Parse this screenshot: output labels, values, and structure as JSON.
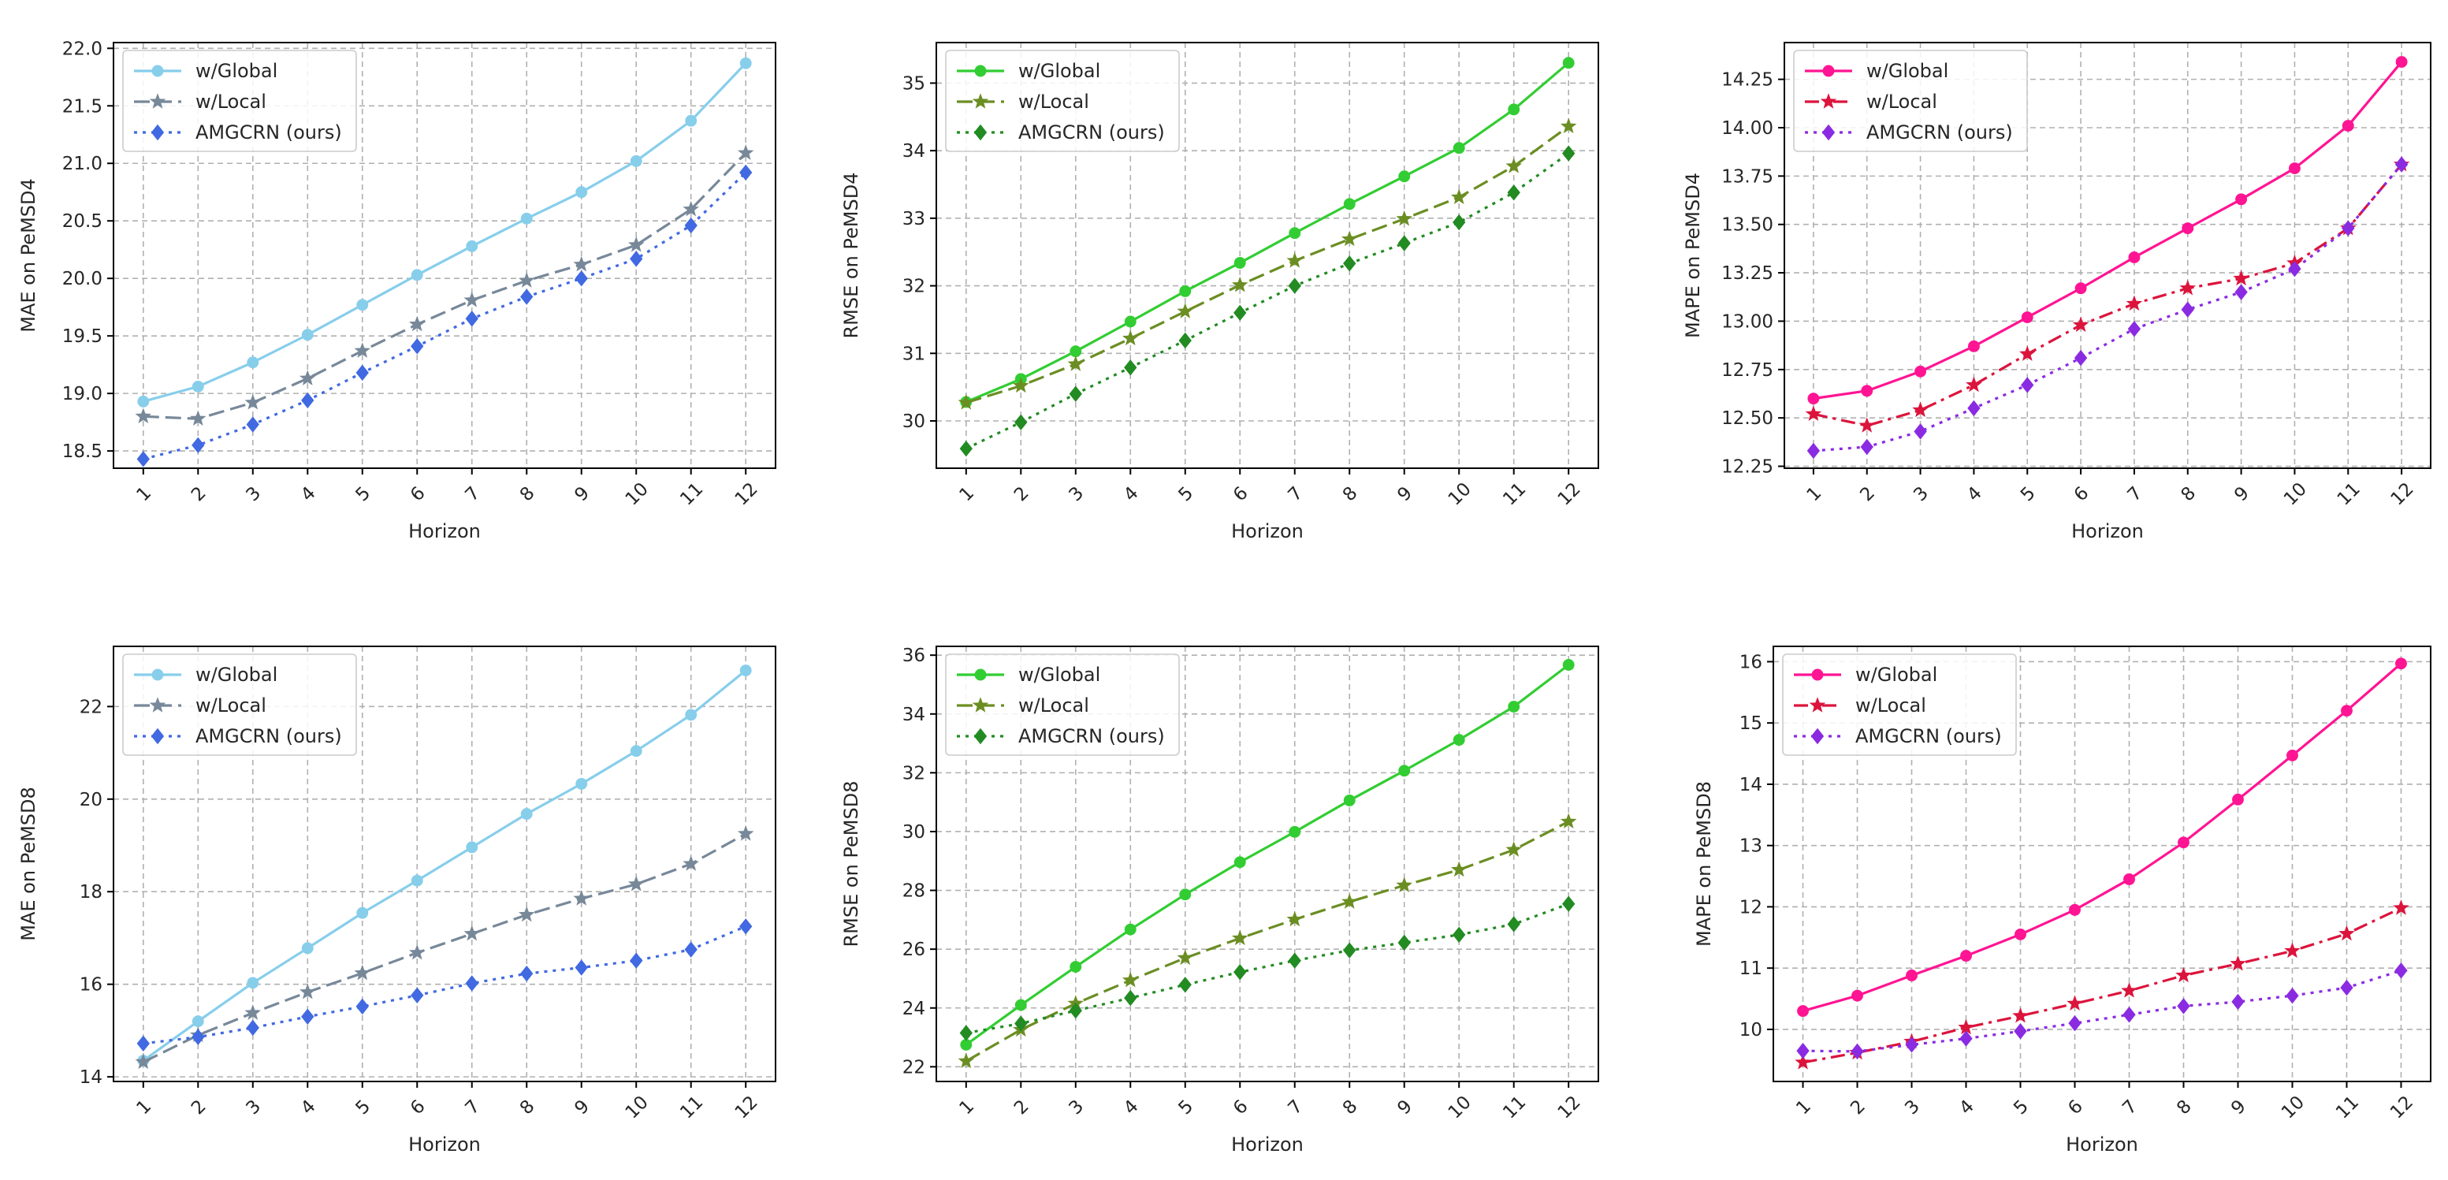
{
  "figure": {
    "subplots": 6
  },
  "chart_data": [
    {
      "type": "line",
      "xlabel": "Horizon",
      "ylabel": "MAE on PeMSD4",
      "x": [
        "1",
        "2",
        "3",
        "4",
        "5",
        "6",
        "7",
        "8",
        "9",
        "10",
        "11",
        "12"
      ],
      "ylim": [
        18.35,
        22.05
      ],
      "yticks": [
        18.5,
        19.0,
        19.5,
        20.0,
        20.5,
        21.0,
        21.5,
        22.0
      ],
      "ytick_labels": [
        "18.5",
        "19.0",
        "19.5",
        "20.0",
        "20.5",
        "21.0",
        "21.5",
        "22.0"
      ],
      "grid": true,
      "legend_position": "upper-left",
      "series": [
        {
          "name": "w/Global",
          "color": "#87ceeb",
          "marker": "circle",
          "linestyle": "solid",
          "values": [
            18.93,
            19.06,
            19.27,
            19.51,
            19.77,
            20.03,
            20.28,
            20.52,
            20.75,
            21.02,
            21.37,
            21.87
          ]
        },
        {
          "name": "w/Local",
          "color": "#778899",
          "marker": "star",
          "linestyle": "dashed",
          "values": [
            18.8,
            18.78,
            18.92,
            19.13,
            19.37,
            19.6,
            19.81,
            19.98,
            20.12,
            20.29,
            20.6,
            21.09
          ]
        },
        {
          "name": "AMGCRN (ours)",
          "color": "#4169e1",
          "marker": "diamond",
          "linestyle": "dotted",
          "values": [
            18.43,
            18.55,
            18.73,
            18.94,
            19.18,
            19.41,
            19.65,
            19.84,
            20.0,
            20.17,
            20.46,
            20.92
          ]
        }
      ]
    },
    {
      "type": "line",
      "xlabel": "Horizon",
      "ylabel": "RMSE on PeMSD4",
      "x": [
        "1",
        "2",
        "3",
        "4",
        "5",
        "6",
        "7",
        "8",
        "9",
        "10",
        "11",
        "12"
      ],
      "ylim": [
        29.3,
        35.6
      ],
      "yticks": [
        30,
        31,
        32,
        33,
        34,
        35
      ],
      "ytick_labels": [
        "30",
        "31",
        "32",
        "33",
        "34",
        "35"
      ],
      "grid": true,
      "legend_position": "upper-left",
      "series": [
        {
          "name": "w/Global",
          "color": "#32cd32",
          "marker": "circle",
          "linestyle": "solid",
          "values": [
            30.28,
            30.62,
            31.03,
            31.47,
            31.92,
            32.34,
            32.78,
            33.21,
            33.62,
            34.04,
            34.61,
            35.3
          ]
        },
        {
          "name": "w/Local",
          "color": "#6b8e23",
          "marker": "star",
          "linestyle": "dashed",
          "values": [
            30.27,
            30.52,
            30.84,
            31.22,
            31.62,
            32.01,
            32.37,
            32.69,
            32.99,
            33.31,
            33.77,
            34.36
          ]
        },
        {
          "name": "AMGCRN (ours)",
          "color": "#228b22",
          "marker": "diamond",
          "linestyle": "dotted",
          "values": [
            29.59,
            29.98,
            30.4,
            30.79,
            31.19,
            31.6,
            32.0,
            32.33,
            32.63,
            32.94,
            33.38,
            33.96
          ]
        }
      ]
    },
    {
      "type": "line",
      "xlabel": "Horizon",
      "ylabel": "MAPE on PeMSD4",
      "x": [
        "1",
        "2",
        "3",
        "4",
        "5",
        "6",
        "7",
        "8",
        "9",
        "10",
        "11",
        "12"
      ],
      "ylim": [
        12.24,
        14.44
      ],
      "yticks": [
        12.25,
        12.5,
        12.75,
        13.0,
        13.25,
        13.5,
        13.75,
        14.0,
        14.25
      ],
      "ytick_labels": [
        "12.25",
        "12.50",
        "12.75",
        "13.00",
        "13.25",
        "13.50",
        "13.75",
        "14.00",
        "14.25"
      ],
      "grid": true,
      "legend_position": "upper-left",
      "series": [
        {
          "name": "w/Global",
          "color": "#ff1493",
          "marker": "circle",
          "linestyle": "solid",
          "values": [
            12.6,
            12.64,
            12.74,
            12.87,
            13.02,
            13.17,
            13.33,
            13.48,
            13.63,
            13.79,
            14.01,
            14.34
          ]
        },
        {
          "name": "w/Local",
          "color": "#dc143c",
          "marker": "star",
          "linestyle": "dashdot",
          "values": [
            12.52,
            12.46,
            12.54,
            12.67,
            12.83,
            12.98,
            13.09,
            13.17,
            13.22,
            13.3,
            13.48,
            13.81
          ]
        },
        {
          "name": "AMGCRN (ours)",
          "color": "#8a2be2",
          "marker": "diamond",
          "linestyle": "dotted",
          "values": [
            12.33,
            12.35,
            12.43,
            12.55,
            12.67,
            12.81,
            12.96,
            13.06,
            13.15,
            13.27,
            13.48,
            13.81
          ]
        }
      ]
    },
    {
      "type": "line",
      "xlabel": "Horizon",
      "ylabel": "MAE on PeMSD8",
      "x": [
        "1",
        "2",
        "3",
        "4",
        "5",
        "6",
        "7",
        "8",
        "9",
        "10",
        "11",
        "12"
      ],
      "ylim": [
        13.9,
        23.3
      ],
      "yticks": [
        14,
        16,
        18,
        20,
        22
      ],
      "ytick_labels": [
        "14",
        "16",
        "18",
        "20",
        "22"
      ],
      "grid": true,
      "legend_position": "upper-left",
      "series": [
        {
          "name": "w/Global",
          "color": "#87ceeb",
          "marker": "circle",
          "linestyle": "solid",
          "values": [
            14.35,
            15.2,
            16.03,
            16.78,
            17.54,
            18.24,
            18.96,
            19.68,
            20.33,
            21.04,
            21.82,
            22.78
          ]
        },
        {
          "name": "w/Local",
          "color": "#778899",
          "marker": "star",
          "linestyle": "dashed",
          "values": [
            14.32,
            14.9,
            15.38,
            15.83,
            16.24,
            16.68,
            17.09,
            17.5,
            17.85,
            18.16,
            18.6,
            19.25
          ]
        },
        {
          "name": "AMGCRN (ours)",
          "color": "#4169e1",
          "marker": "diamond",
          "linestyle": "dotted",
          "values": [
            14.72,
            14.86,
            15.06,
            15.3,
            15.52,
            15.76,
            16.02,
            16.23,
            16.36,
            16.51,
            16.75,
            17.25
          ]
        }
      ]
    },
    {
      "type": "line",
      "xlabel": "Horizon",
      "ylabel": "RMSE on PeMSD8",
      "x": [
        "1",
        "2",
        "3",
        "4",
        "5",
        "6",
        "7",
        "8",
        "9",
        "10",
        "11",
        "12"
      ],
      "ylim": [
        21.5,
        36.3
      ],
      "yticks": [
        22,
        24,
        26,
        28,
        30,
        32,
        34,
        36
      ],
      "ytick_labels": [
        "22",
        "24",
        "26",
        "28",
        "30",
        "32",
        "34",
        "36"
      ],
      "grid": true,
      "legend_position": "upper-left",
      "series": [
        {
          "name": "w/Global",
          "color": "#32cd32",
          "marker": "circle",
          "linestyle": "solid",
          "values": [
            22.75,
            24.1,
            25.4,
            26.67,
            27.86,
            28.96,
            29.99,
            31.06,
            32.07,
            33.12,
            34.25,
            35.67
          ]
        },
        {
          "name": "w/Local",
          "color": "#6b8e23",
          "marker": "star",
          "linestyle": "dashed",
          "values": [
            22.19,
            23.26,
            24.15,
            24.94,
            25.7,
            26.37,
            27.01,
            27.61,
            28.17,
            28.7,
            29.38,
            30.34
          ]
        },
        {
          "name": "AMGCRN (ours)",
          "color": "#228b22",
          "marker": "diamond",
          "linestyle": "dotted",
          "values": [
            23.15,
            23.47,
            23.91,
            24.34,
            24.79,
            25.22,
            25.61,
            25.96,
            26.22,
            26.49,
            26.85,
            27.54
          ]
        }
      ]
    },
    {
      "type": "line",
      "xlabel": "Horizon",
      "ylabel": "MAPE on PeMSD8",
      "x": [
        "1",
        "2",
        "3",
        "4",
        "5",
        "6",
        "7",
        "8",
        "9",
        "10",
        "11",
        "12"
      ],
      "ylim": [
        9.15,
        16.25
      ],
      "yticks": [
        10,
        11,
        12,
        13,
        14,
        15,
        16
      ],
      "ytick_labels": [
        "10",
        "11",
        "12",
        "13",
        "14",
        "15",
        "16"
      ],
      "grid": true,
      "legend_position": "upper-left",
      "series": [
        {
          "name": "w/Global",
          "color": "#ff1493",
          "marker": "circle",
          "linestyle": "solid",
          "values": [
            10.3,
            10.55,
            10.88,
            11.2,
            11.55,
            11.95,
            12.45,
            13.05,
            13.75,
            14.47,
            15.2,
            15.97
          ]
        },
        {
          "name": "w/Local",
          "color": "#dc143c",
          "marker": "star",
          "linestyle": "dashdot",
          "values": [
            9.46,
            9.62,
            9.8,
            10.03,
            10.22,
            10.42,
            10.63,
            10.88,
            11.07,
            11.28,
            11.56,
            11.98
          ]
        },
        {
          "name": "AMGCRN (ours)",
          "color": "#8a2be2",
          "marker": "diamond",
          "linestyle": "dotted",
          "values": [
            9.65,
            9.64,
            9.75,
            9.85,
            9.97,
            10.1,
            10.24,
            10.38,
            10.45,
            10.55,
            10.68,
            10.96
          ]
        }
      ]
    }
  ]
}
